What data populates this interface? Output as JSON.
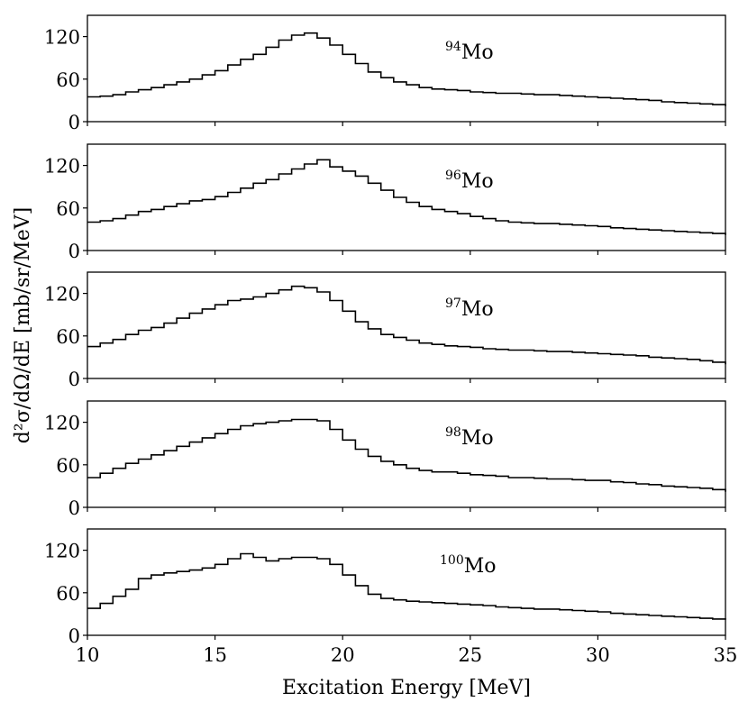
{
  "chart_data": {
    "type": "line",
    "style": "step-histogram",
    "xlabel": "Excitation Energy [MeV]",
    "ylabel": "d²σ/dΩ/dE [mb/sr/MeV]",
    "xlim": [
      10,
      35
    ],
    "ylim": [
      0,
      150
    ],
    "xticks": [
      "10",
      "15",
      "20",
      "25",
      "30",
      "35"
    ],
    "xtick_values": [
      10,
      15,
      20,
      25,
      30,
      35
    ],
    "yticks": [
      "0",
      "60",
      "120"
    ],
    "ytick_values": [
      0,
      60,
      120
    ],
    "x_start": 10,
    "bin_width": 0.5,
    "color": "#000000",
    "panels": [
      {
        "mass": "94",
        "element": "Mo",
        "values": [
          35,
          36,
          38,
          42,
          45,
          48,
          52,
          56,
          60,
          66,
          72,
          80,
          88,
          95,
          105,
          115,
          122,
          125,
          118,
          108,
          95,
          82,
          70,
          62,
          56,
          52,
          48,
          46,
          45,
          44,
          42,
          41,
          40,
          40,
          39,
          38,
          38,
          37,
          36,
          35,
          34,
          33,
          32,
          31,
          30,
          28,
          27,
          26,
          25,
          24,
          22
        ]
      },
      {
        "mass": "96",
        "element": "Mo",
        "values": [
          40,
          42,
          45,
          50,
          55,
          58,
          62,
          66,
          70,
          72,
          76,
          82,
          88,
          95,
          100,
          108,
          115,
          122,
          128,
          118,
          112,
          105,
          95,
          85,
          75,
          68,
          62,
          58,
          55,
          52,
          48,
          45,
          42,
          40,
          39,
          38,
          38,
          37,
          36,
          35,
          34,
          32,
          31,
          30,
          29,
          28,
          27,
          26,
          25,
          24,
          22
        ]
      },
      {
        "mass": "97",
        "element": "Mo",
        "values": [
          45,
          50,
          55,
          62,
          68,
          72,
          78,
          85,
          92,
          98,
          104,
          110,
          112,
          115,
          120,
          125,
          130,
          128,
          122,
          110,
          95,
          80,
          70,
          62,
          58,
          54,
          50,
          48,
          46,
          45,
          44,
          42,
          41,
          40,
          40,
          39,
          38,
          38,
          37,
          36,
          35,
          34,
          33,
          32,
          30,
          29,
          28,
          27,
          25,
          23,
          20
        ]
      },
      {
        "mass": "98",
        "element": "Mo",
        "values": [
          42,
          48,
          55,
          62,
          68,
          74,
          80,
          86,
          92,
          98,
          104,
          110,
          115,
          118,
          120,
          122,
          124,
          124,
          122,
          110,
          95,
          82,
          72,
          65,
          60,
          55,
          52,
          50,
          50,
          48,
          46,
          45,
          44,
          42,
          42,
          41,
          40,
          40,
          39,
          38,
          38,
          36,
          35,
          33,
          32,
          30,
          29,
          28,
          27,
          25,
          22
        ]
      },
      {
        "mass": "100",
        "element": "Mo",
        "values": [
          38,
          45,
          55,
          65,
          80,
          85,
          88,
          90,
          92,
          95,
          100,
          108,
          115,
          110,
          105,
          108,
          110,
          110,
          108,
          100,
          85,
          70,
          58,
          52,
          50,
          48,
          47,
          46,
          45,
          44,
          43,
          42,
          40,
          39,
          38,
          37,
          37,
          36,
          35,
          34,
          33,
          31,
          30,
          29,
          28,
          27,
          26,
          25,
          24,
          23,
          22
        ]
      }
    ]
  }
}
